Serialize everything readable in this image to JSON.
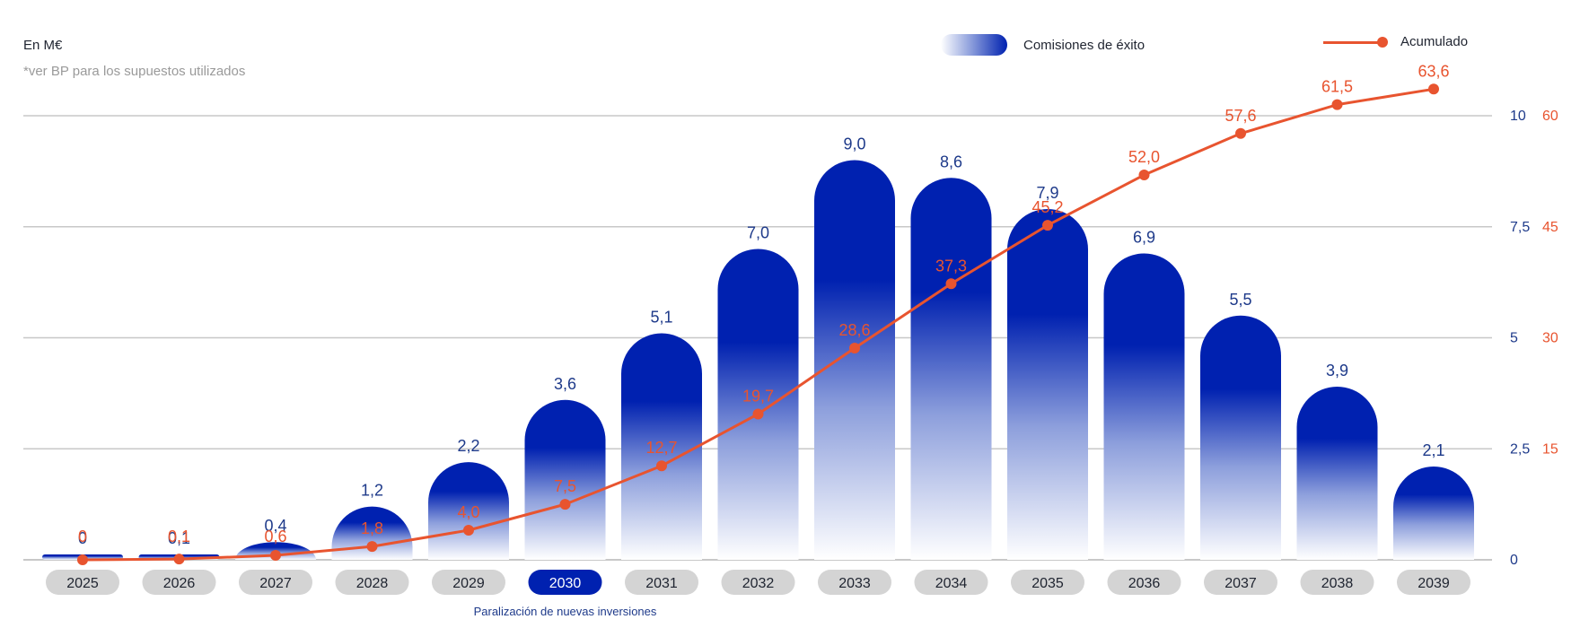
{
  "header": {
    "unit_label": "En M€",
    "footnote": "*ver BP para los supuestos utilizados"
  },
  "legend": {
    "bars_label": "Comisiones de éxito",
    "line_label": "Acumulado"
  },
  "annotation": {
    "text": "Paralización de nuevas inversiones",
    "year": "2030"
  },
  "colors": {
    "bar": "#0021b0",
    "line": "#e8542f",
    "left_axis_text": "#1e3a8a",
    "right_axis_text": "#e8542f",
    "tick_pill": "#d4d4d4",
    "highlight_pill": "#0021b0",
    "grid": "#c8c8c8"
  },
  "chart_data": {
    "type": "bar",
    "categories": [
      "2025",
      "2026",
      "2027",
      "2028",
      "2029",
      "2030",
      "2031",
      "2032",
      "2033",
      "2034",
      "2035",
      "2036",
      "2037",
      "2038",
      "2039"
    ],
    "highlighted_category": "2030",
    "series": [
      {
        "name": "Comisiones de éxito",
        "type": "bar",
        "axis": "left",
        "values": [
          0,
          0.1,
          0.4,
          1.2,
          2.2,
          3.6,
          5.1,
          7.0,
          9.0,
          8.6,
          7.9,
          6.9,
          5.5,
          3.9,
          2.1
        ],
        "labels": [
          "0",
          "0,1",
          "0,4",
          "1,2",
          "2,2",
          "3,6",
          "5,1",
          "7,0",
          "9,0",
          "8,6",
          "7,9",
          "6,9",
          "5,5",
          "3,9",
          "2,1"
        ]
      },
      {
        "name": "Acumulado",
        "type": "line",
        "axis": "right",
        "values": [
          0,
          0.1,
          0.6,
          1.8,
          4.0,
          7.5,
          12.7,
          19.7,
          28.6,
          37.3,
          45.2,
          52.0,
          57.6,
          61.5,
          63.6
        ],
        "labels": [
          "0",
          "0,1",
          "0,6",
          "1,8",
          "4,0",
          "7,5",
          "12,7",
          "19,7",
          "28,6",
          "37,3",
          "45,2",
          "52,0",
          "57,6",
          "61,5",
          "63,6"
        ]
      }
    ],
    "y_left": {
      "ticks": [
        0,
        2.5,
        5,
        7.5,
        10
      ],
      "tick_labels": [
        "0",
        "2,5",
        "5",
        "7,5",
        "10"
      ],
      "ylim": [
        0,
        10
      ]
    },
    "y_right": {
      "ticks": [
        15,
        30,
        45,
        60
      ],
      "tick_labels": [
        "15",
        "30",
        "45",
        "60"
      ],
      "ylim": [
        0,
        60
      ]
    },
    "grid": true,
    "legend_position": "top-right"
  }
}
